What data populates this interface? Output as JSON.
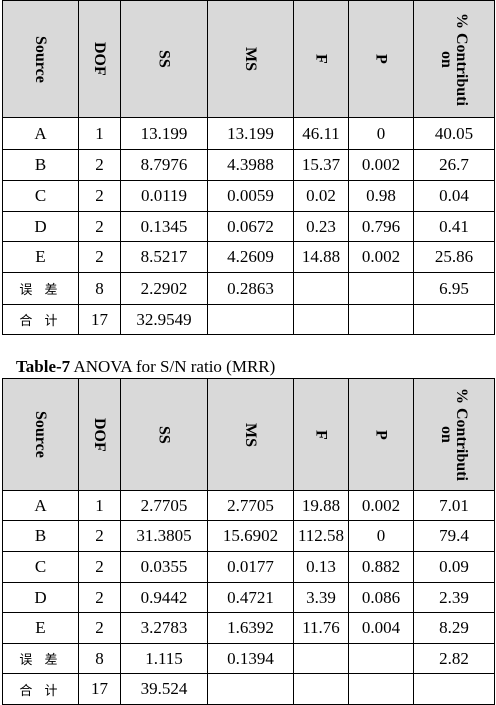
{
  "tables": [
    {
      "header": [
        "Source",
        "DOF",
        "SS",
        "MS",
        "F",
        "P",
        "% Contribution"
      ],
      "rows": [
        [
          "A",
          1,
          13.199,
          13.199,
          46.11,
          0,
          40.05
        ],
        [
          "B",
          2,
          8.7976,
          4.3988,
          15.37,
          0.002,
          26.7
        ],
        [
          "C",
          2,
          0.0119,
          0.0059,
          0.02,
          0.98,
          0.04
        ],
        [
          "D",
          2,
          0.1345,
          0.0672,
          0.23,
          0.796,
          0.41
        ],
        [
          "E",
          2,
          8.5217,
          4.2609,
          14.88,
          0.002,
          25.86
        ],
        [
          "误 差",
          8,
          2.2902,
          0.2863,
          null,
          null,
          6.95
        ],
        [
          "合 计",
          17,
          32.9549,
          null,
          null,
          null,
          null
        ]
      ]
    },
    {
      "caption_label": "Table-7",
      "caption": "ANOVA for S/N ratio (MRR)",
      "header": [
        "Source",
        "DOF",
        "SS",
        "MS",
        "F",
        "P",
        "% Contribution"
      ],
      "rows": [
        [
          "A",
          1,
          2.7705,
          2.7705,
          19.88,
          0.002,
          7.01
        ],
        [
          "B",
          2,
          31.3805,
          15.6902,
          112.58,
          0,
          79.4
        ],
        [
          "C",
          2,
          0.0355,
          0.0177,
          0.13,
          0.882,
          0.09
        ],
        [
          "D",
          2,
          0.9442,
          0.4721,
          3.39,
          0.086,
          2.39
        ],
        [
          "E",
          2,
          3.2783,
          1.6392,
          11.76,
          0.004,
          8.29
        ],
        [
          "误 差",
          8,
          1.115,
          0.1394,
          null,
          null,
          2.82
        ],
        [
          "合 计",
          17,
          39.524,
          null,
          null,
          null,
          null
        ]
      ]
    }
  ]
}
